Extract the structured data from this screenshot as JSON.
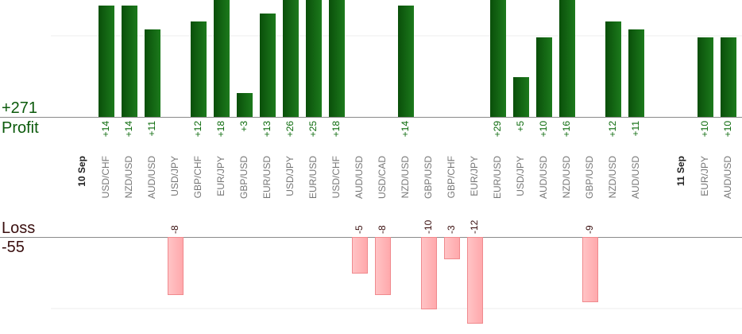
{
  "summary": {
    "profit_total": "+271",
    "profit_label": "Profit",
    "loss_label": "Loss",
    "loss_total": "-55"
  },
  "colors": {
    "profit_bar_dark": "#0a4f0a",
    "profit_bar_light": "#1c7a1c",
    "profit_text": "#0b6a0b",
    "loss_bar": "#ffb3b5",
    "loss_bar_border": "#f08a8e",
    "loss_text": "#3a0f0f",
    "pair_text": "#777777",
    "date_text": "#222222"
  },
  "chart_data": {
    "type": "bar",
    "scale_note": "profit bars clipped at top",
    "dates": [
      {
        "label": "10 Sep",
        "slot": 0
      },
      {
        "label": "11 Sep",
        "slot": 26
      }
    ],
    "trades": [
      {
        "slot": 1,
        "pair": "USD/CHF",
        "value": 14,
        "label": "+14"
      },
      {
        "slot": 2,
        "pair": "NZD/USD",
        "value": 14,
        "label": "+14"
      },
      {
        "slot": 3,
        "pair": "AUD/USD",
        "value": 11,
        "label": "+11"
      },
      {
        "slot": 4,
        "pair": "USD/JPY",
        "value": -8,
        "label": "-8"
      },
      {
        "slot": 5,
        "pair": "GBP/CHF",
        "value": 12,
        "label": "+12"
      },
      {
        "slot": 6,
        "pair": "EUR/JPY",
        "value": 18,
        "label": "+18"
      },
      {
        "slot": 7,
        "pair": "GBP/USD",
        "value": 3,
        "label": "+3"
      },
      {
        "slot": 8,
        "pair": "EUR/USD",
        "value": 13,
        "label": "+13"
      },
      {
        "slot": 9,
        "pair": "USD/JPY",
        "value": 26,
        "label": "+26"
      },
      {
        "slot": 10,
        "pair": "EUR/USD",
        "value": 25,
        "label": "+25"
      },
      {
        "slot": 11,
        "pair": "USD/CHF",
        "value": 18,
        "label": "+18"
      },
      {
        "slot": 12,
        "pair": "AUD/USD",
        "value": -5,
        "label": "-5"
      },
      {
        "slot": 13,
        "pair": "USD/CAD",
        "value": -8,
        "label": "-8"
      },
      {
        "slot": 14,
        "pair": "NZD/USD",
        "value": 14,
        "label": "+14"
      },
      {
        "slot": 15,
        "pair": "GBP/USD",
        "value": -10,
        "label": "-10"
      },
      {
        "slot": 16,
        "pair": "GBP/CHF",
        "value": -3,
        "label": "-3"
      },
      {
        "slot": 17,
        "pair": "EUR/JPY",
        "value": -12,
        "label": "-12"
      },
      {
        "slot": 18,
        "pair": "EUR/USD",
        "value": 29,
        "label": "+29"
      },
      {
        "slot": 19,
        "pair": "USD/JPY",
        "value": 5,
        "label": "+5"
      },
      {
        "slot": 20,
        "pair": "AUD/USD",
        "value": 10,
        "label": "+10"
      },
      {
        "slot": 21,
        "pair": "NZD/USD",
        "value": 16,
        "label": "+16"
      },
      {
        "slot": 22,
        "pair": "GBP/USD",
        "value": -9,
        "label": "-9"
      },
      {
        "slot": 23,
        "pair": "NZD/USD",
        "value": 12,
        "label": "+12"
      },
      {
        "slot": 24,
        "pair": "AUD/USD",
        "value": 11,
        "label": "+11"
      },
      {
        "slot": 27,
        "pair": "EUR/JPY",
        "value": 10,
        "label": "+10"
      },
      {
        "slot": 28,
        "pair": "AUD/USD",
        "value": 10,
        "label": "+10"
      }
    ]
  }
}
